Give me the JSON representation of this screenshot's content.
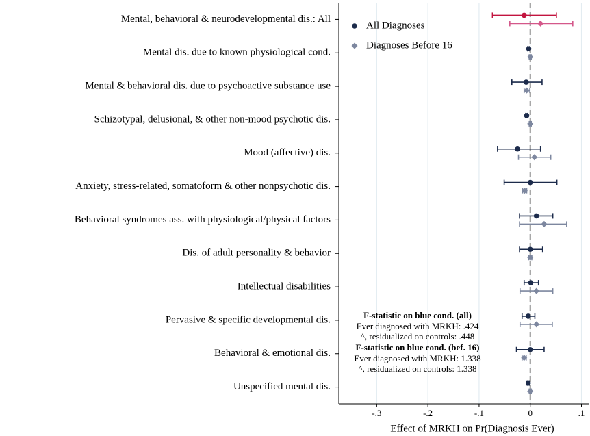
{
  "chart_data": {
    "type": "dot",
    "xlabel": "Effect of MRKH on Pr(Diagnosis Ever)",
    "categories": [
      "Mental, behavioral & neurodevelopmental dis.: All",
      "Mental dis. due to known physiological cond.",
      "Mental & behavioral dis. due to psychoactive substance use",
      "Schizotypal, delusional, & other non-mood psychotic dis.",
      "Mood (affective) dis.",
      "Anxiety, stress-related, somatoform & other nonpsychotic dis.",
      "Behavioral syndromes ass. with physiological/physical factors",
      "Dis. of adult personality & behavior",
      "Intellectual disabilities",
      "Pervasive & specific developmental dis.",
      "Behavioral & emotional dis.",
      "Unspecified mental dis."
    ],
    "series": [
      {
        "name": "All Diagnoses",
        "color": "#1c2b4b",
        "highlight_color": "#c2143f",
        "marker": "circle",
        "values": [
          -0.012,
          -0.003,
          -0.008,
          -0.007,
          -0.025,
          0.0,
          0.012,
          0.0,
          0.001,
          -0.004,
          0.0,
          -0.004
        ],
        "lower": [
          -0.074,
          -0.005,
          -0.036,
          -0.009,
          -0.064,
          -0.051,
          -0.021,
          -0.021,
          -0.012,
          -0.016,
          -0.027,
          -0.006
        ],
        "upper": [
          0.051,
          -0.001,
          0.023,
          -0.005,
          0.02,
          0.052,
          0.044,
          0.024,
          0.016,
          0.009,
          0.027,
          -0.002
        ]
      },
      {
        "name": "Diagnoses Before 16",
        "color": "#7d879f",
        "highlight_color": "#d4588a",
        "marker": "diamond",
        "values": [
          0.02,
          0.0,
          -0.007,
          0.0,
          0.008,
          -0.011,
          0.027,
          0.0,
          0.012,
          0.012,
          -0.012,
          0.0
        ],
        "lower": [
          -0.04,
          -0.002,
          -0.012,
          -0.002,
          -0.023,
          -0.015,
          -0.021,
          -0.003,
          -0.02,
          -0.02,
          -0.016,
          -0.002
        ],
        "upper": [
          0.083,
          0.002,
          -0.001,
          0.002,
          0.04,
          -0.007,
          0.071,
          0.003,
          0.044,
          0.043,
          -0.008,
          0.002
        ]
      }
    ],
    "highlight": [
      0
    ],
    "xlim": [
      -0.374,
      0.114
    ],
    "xticks": [
      {
        "value": -0.3,
        "label": "-.3"
      },
      {
        "value": -0.2,
        "label": "-.2"
      },
      {
        "value": -0.1,
        "label": "-.1"
      },
      0,
      {
        "value": 0.1,
        "label": ".1"
      }
    ],
    "grid": true,
    "refline": 0,
    "legend": "upper left",
    "annotations": [
      {
        "heading": "F-statistic on blue cond. (all)",
        "lines": [
          "Ever diagnosed with MRKH: .424",
          "^, residualized on controls: .448"
        ]
      },
      {
        "heading": "F-statistic on blue cond. (bef. 16)",
        "lines": [
          "Ever diagnosed with MRKH: 1.338",
          "^, residualized on controls: 1.338"
        ]
      }
    ]
  }
}
